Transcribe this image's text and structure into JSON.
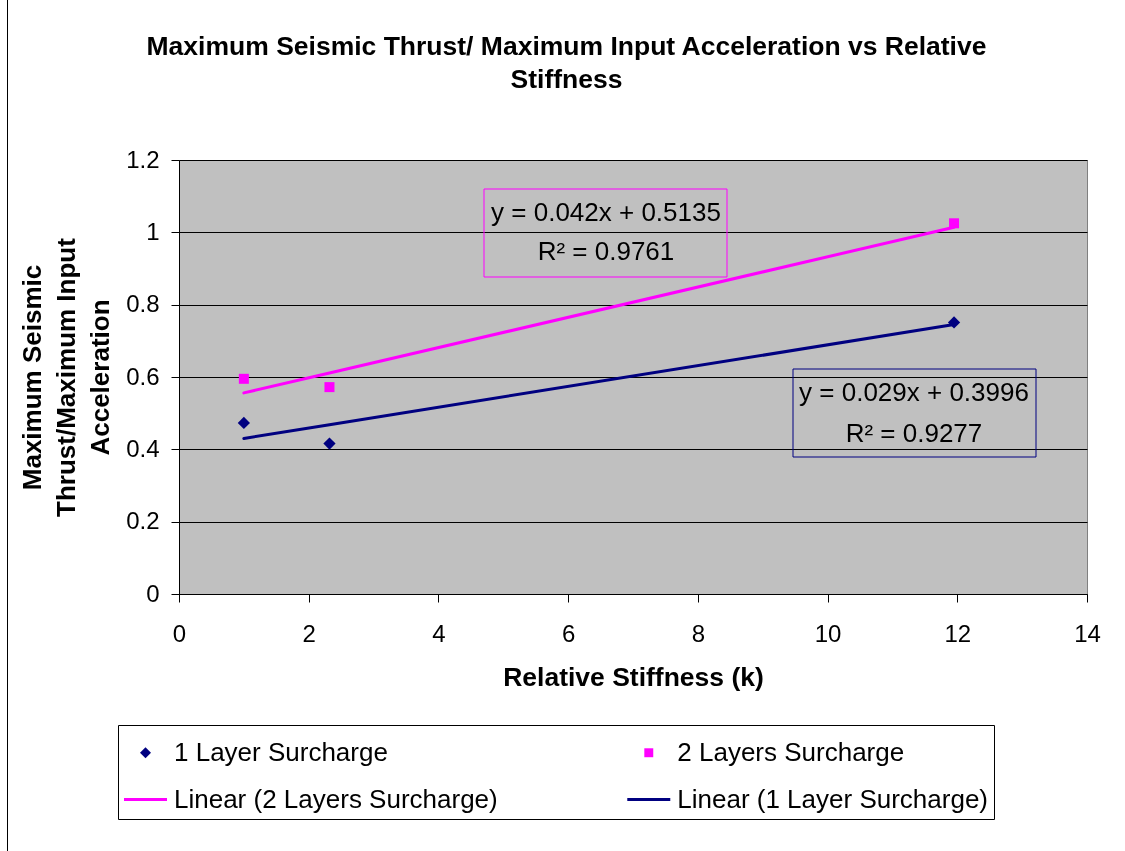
{
  "chart_data": {
    "type": "scatter",
    "title": "Maximum Seismic Thrust/ Maximum Input Acceleration vs Relative Stiffness",
    "xlabel": "Relative Stiffness (k)",
    "ylabel": "Maximum Seismic Thrust/Maximum Input Acceleration",
    "x": [
      1,
      2.32,
      11.95
    ],
    "series": [
      {
        "name": "1 Layer Surcharge",
        "marker": "diamond",
        "color": "#000080",
        "values": [
          0.473,
          0.416,
          0.751
        ]
      },
      {
        "name": "2 Layers Surcharge",
        "marker": "square",
        "color": "#ff00ff",
        "values": [
          0.595,
          0.572,
          1.025
        ]
      },
      {
        "name": "Linear (2 Layers Surcharge)",
        "type": "line",
        "color": "#ff00ff",
        "values": [
          0.556,
          0.611,
          1.014
        ]
      },
      {
        "name": "Linear (1 Layer Surcharge)",
        "type": "line",
        "color": "#000080",
        "values": [
          0.43,
          0.468,
          0.745
        ]
      }
    ],
    "xlim": [
      0,
      14
    ],
    "xticks": [
      0,
      2,
      4,
      6,
      8,
      10,
      12,
      14
    ],
    "ylim": [
      0,
      1.2
    ],
    "yticks": [
      0,
      0.2,
      0.4,
      0.6,
      0.8,
      1,
      1.2
    ],
    "grid": "y",
    "legend": "bottom",
    "annotations": [
      "y = 0.042x + 0.5135",
      "R² = 0.9761",
      "y = 0.029x + 0.3996",
      "R² = 0.9277"
    ]
  }
}
